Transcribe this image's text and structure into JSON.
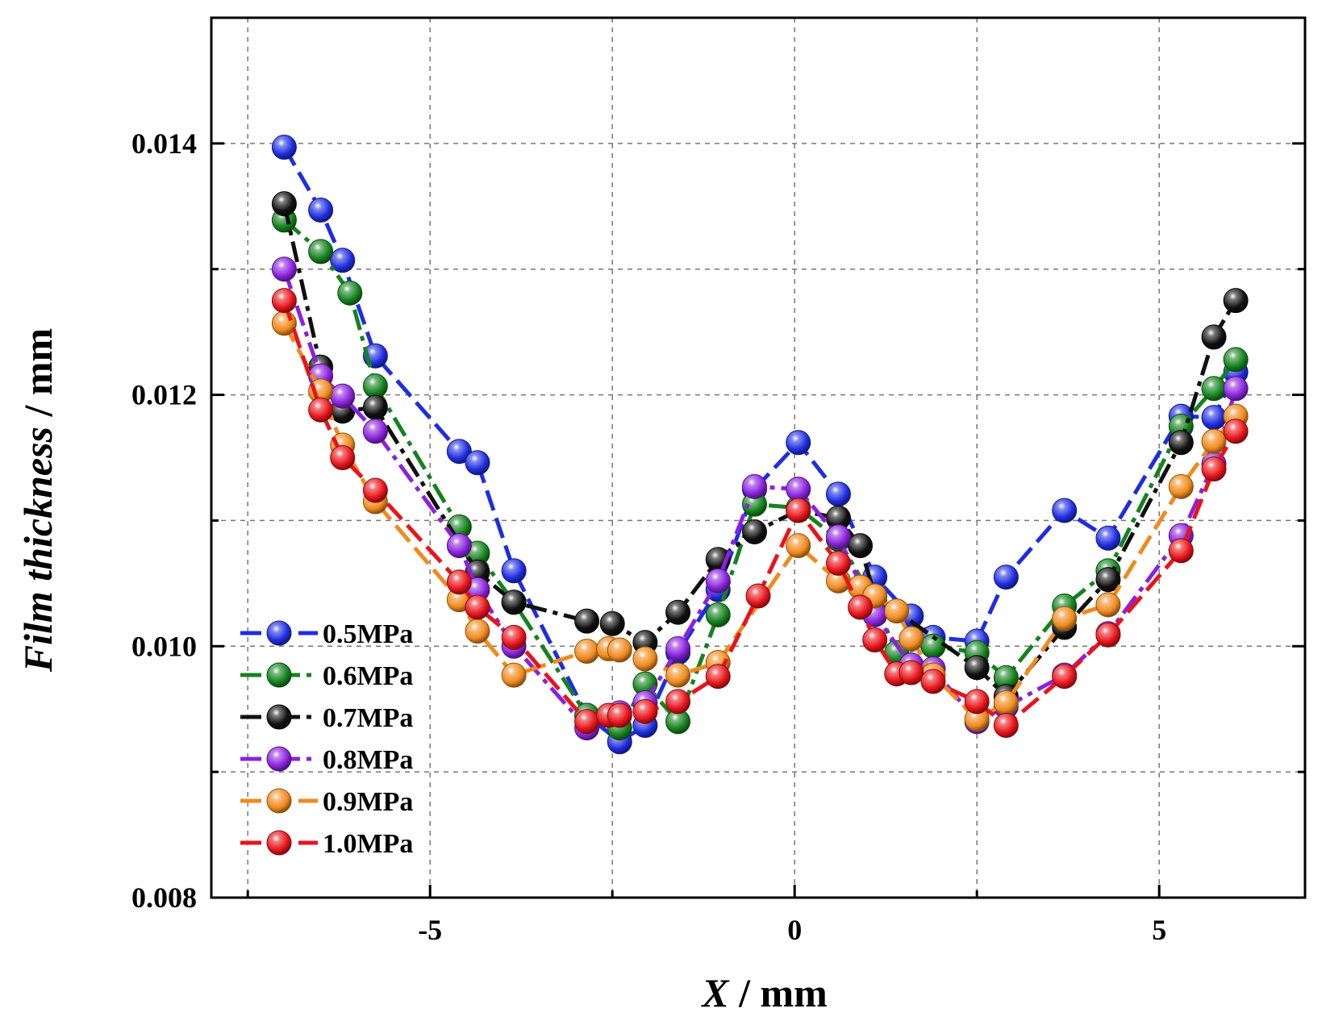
{
  "chart_data": {
    "type": "line",
    "title": "",
    "xlabel": "X / mm",
    "xlabel_var": "X",
    "xlabel_unit": " / mm",
    "ylabel": "Film thickness / mm",
    "ylabel_var": "Film thickness",
    "ylabel_unit": " / mm",
    "xlim": [
      -8,
      7
    ],
    "ylim": [
      0.008,
      0.015
    ],
    "xticks": [
      -5,
      0,
      5
    ],
    "xtick_labels": [
      "-5",
      "0",
      "5"
    ],
    "xgrid": [
      -7.5,
      -5,
      -2.5,
      0,
      2.5,
      5
    ],
    "yticks": [
      0.008,
      0.01,
      0.012,
      0.014
    ],
    "ytick_labels": [
      "0.008",
      "0.010",
      "0.012",
      "0.014"
    ],
    "ygrid": [
      0.009,
      0.01,
      0.011,
      0.012,
      0.013,
      0.014
    ],
    "grid": true,
    "legend_position": "bottom-left",
    "series": [
      {
        "name": "0.5MPa",
        "color": "#1f2de0",
        "dash": "dash",
        "x": [
          -7.0,
          -6.5,
          -6.2,
          -5.75,
          -4.6,
          -4.35,
          -3.85,
          -2.85,
          -2.4,
          -2.05,
          -1.6,
          -1.05,
          -0.55,
          0.05,
          0.6,
          1.1,
          1.6,
          1.9,
          2.5,
          2.9,
          3.7,
          4.3,
          5.3,
          5.75,
          6.05
        ],
        "y": [
          0.01397,
          0.01347,
          0.01307,
          0.01231,
          0.01155,
          0.01146,
          0.0106,
          0.00945,
          0.00924,
          0.00937,
          0.00995,
          0.01045,
          0.01125,
          0.01162,
          0.01121,
          0.01055,
          0.01024,
          0.01007,
          0.01004,
          0.01055,
          0.01108,
          0.01086,
          0.01183,
          0.01182,
          0.01218
        ]
      },
      {
        "name": "0.6MPa",
        "color": "#15821f",
        "dash": "dashdot",
        "x": [
          -7.0,
          -6.5,
          -6.1,
          -5.75,
          -4.6,
          -4.35,
          -3.85,
          -2.85,
          -2.4,
          -2.05,
          -1.6,
          -1.05,
          -0.55,
          0.05,
          0.6,
          1.1,
          1.4,
          1.9,
          2.5,
          2.9,
          3.7,
          4.3,
          5.3,
          5.75,
          6.05
        ],
        "y": [
          0.01339,
          0.01314,
          0.01281,
          0.01207,
          0.01095,
          0.01074,
          0.01035,
          0.00945,
          0.00935,
          0.0097,
          0.0094,
          0.01025,
          0.01113,
          0.0111,
          0.01085,
          0.01035,
          0.00995,
          0.01,
          0.00995,
          0.00975,
          0.01032,
          0.0106,
          0.01175,
          0.01205,
          0.01228
        ]
      },
      {
        "name": "0.7MPa",
        "color": "#101010",
        "dash": "dashdot",
        "x": [
          -7.0,
          -6.5,
          -6.2,
          -5.75,
          -4.35,
          -3.85,
          -2.85,
          -2.5,
          -2.05,
          -1.6,
          -1.05,
          -0.55,
          0.05,
          0.6,
          0.9,
          1.1,
          2.5,
          2.9,
          3.7,
          4.3,
          5.3,
          5.75,
          6.05
        ],
        "y": [
          0.01352,
          0.01222,
          0.01187,
          0.0119,
          0.01059,
          0.01035,
          0.0102,
          0.01018,
          0.01003,
          0.01027,
          0.01069,
          0.01091,
          0.01108,
          0.01102,
          0.0108,
          0.0104,
          0.00983,
          0.0096,
          0.01015,
          0.01053,
          0.01162,
          0.01246,
          0.01275
        ]
      },
      {
        "name": "0.8MPa",
        "color": "#8a22dd",
        "dash": "dashdot",
        "x": [
          -7.0,
          -6.5,
          -6.2,
          -5.75,
          -4.6,
          -4.35,
          -3.85,
          -2.85,
          -2.4,
          -2.05,
          -1.6,
          -1.05,
          -0.55,
          0.05,
          0.6,
          1.1,
          1.6,
          1.9,
          2.5,
          2.9,
          3.7,
          4.3,
          5.3,
          5.75,
          6.05
        ],
        "y": [
          0.013,
          0.01215,
          0.01199,
          0.01171,
          0.0108,
          0.01045,
          0.01,
          0.00935,
          0.00947,
          0.00955,
          0.00998,
          0.01052,
          0.01127,
          0.01125,
          0.01087,
          0.01025,
          0.00985,
          0.00982,
          0.0094,
          0.00952,
          0.00977,
          0.0101,
          0.01088,
          0.01145,
          0.01205
        ]
      },
      {
        "name": "0.9MPa",
        "color": "#f08a1e",
        "dash": "dash",
        "x": [
          -7.0,
          -6.5,
          -6.2,
          -5.75,
          -4.6,
          -4.35,
          -3.85,
          -2.85,
          -2.55,
          -2.4,
          -2.05,
          -1.6,
          -1.05,
          0.05,
          0.6,
          0.9,
          1.1,
          1.4,
          1.6,
          1.9,
          2.5,
          2.9,
          3.7,
          4.3,
          5.3,
          5.75,
          6.05
        ],
        "y": [
          0.01257,
          0.01203,
          0.0116,
          0.01115,
          0.01037,
          0.01012,
          0.00977,
          0.00996,
          0.00998,
          0.00997,
          0.0099,
          0.00977,
          0.00987,
          0.0108,
          0.01052,
          0.01047,
          0.0104,
          0.01028,
          0.01006,
          0.00977,
          0.00942,
          0.00955,
          0.01022,
          0.01033,
          0.01127,
          0.01163,
          0.01183
        ]
      },
      {
        "name": "1.0MPa",
        "color": "#e8141a",
        "dash": "dash",
        "x": [
          -7.0,
          -6.5,
          -6.2,
          -5.75,
          -4.6,
          -4.35,
          -3.85,
          -2.85,
          -2.55,
          -2.4,
          -2.05,
          -1.6,
          -1.05,
          -0.5,
          0.05,
          0.6,
          0.9,
          1.1,
          1.4,
          1.6,
          1.9,
          2.5,
          2.9,
          3.7,
          4.3,
          5.3,
          5.75,
          6.05
        ],
        "y": [
          0.01275,
          0.01188,
          0.0115,
          0.01124,
          0.01051,
          0.01031,
          0.01007,
          0.0094,
          0.00945,
          0.00945,
          0.00948,
          0.00956,
          0.00976,
          0.0104,
          0.01108,
          0.01066,
          0.01031,
          0.01005,
          0.00978,
          0.00979,
          0.00972,
          0.00956,
          0.00937,
          0.00976,
          0.01009,
          0.01076,
          0.01141,
          0.01171
        ]
      }
    ]
  }
}
